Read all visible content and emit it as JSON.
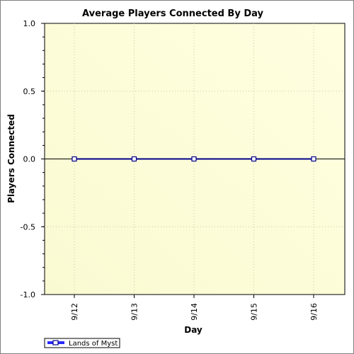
{
  "chart_data": {
    "type": "line",
    "title": "Average Players Connected By Day",
    "xlabel": "Day",
    "ylabel": "Players Connected",
    "categories": [
      "9/12",
      "9/13",
      "9/14",
      "9/15",
      "9/16"
    ],
    "ylim": [
      -1.0,
      1.0
    ],
    "yticks": [
      "1.0",
      "0.5",
      "0.0",
      "-0.5",
      "-1.0"
    ],
    "ytick_values": [
      1.0,
      0.5,
      0.0,
      -0.5,
      -1.0
    ],
    "grid": true,
    "legend_position": "bottom-left",
    "series": [
      {
        "name": "Lands of Myst",
        "values": [
          0,
          0,
          0,
          0,
          0
        ],
        "color": "#00008b"
      }
    ],
    "background_gradient": [
      "#fafad2",
      "#ffffe0"
    ]
  }
}
